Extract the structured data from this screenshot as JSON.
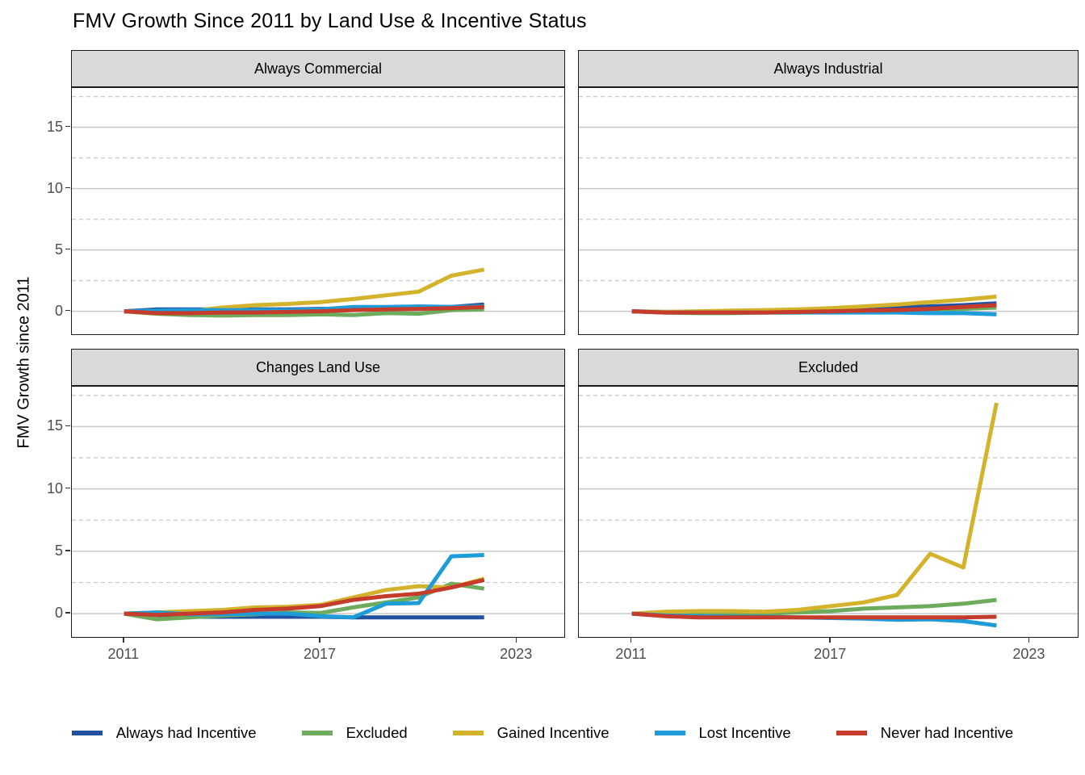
{
  "title": "FMV Growth Since 2011 by Land Use & Incentive Status",
  "ylabel": "FMV Growth since 2011",
  "legend": {
    "items": [
      {
        "label": "Always had Incentive",
        "color": "#22519F"
      },
      {
        "label": "Excluded",
        "color": "#6CAC5C"
      },
      {
        "label": "Gained Incentive",
        "color": "#D3B32B"
      },
      {
        "label": "Lost Incentive",
        "color": "#1E9CD8"
      },
      {
        "label": "Never had Incentive",
        "color": "#C53B2C"
      }
    ]
  },
  "chart_data": {
    "type": "line",
    "x": [
      2011,
      2012,
      2013,
      2014,
      2015,
      2016,
      2017,
      2018,
      2019,
      2020,
      2021,
      2022
    ],
    "xticks": [
      2011,
      2017,
      2023
    ],
    "yticks": [
      0,
      5,
      10,
      15
    ],
    "minor_yticks": [
      2.5,
      7.5,
      12.5,
      17.5
    ],
    "xlim": [
      2009.4,
      2024.5
    ],
    "ylim": [
      -2,
      18.2
    ],
    "grid": "horizontal-only",
    "legend_position": "bottom",
    "series_colors": {
      "Always had Incentive": "#22519F",
      "Excluded": "#6CAC5C",
      "Gained Incentive": "#D3B32B",
      "Lost Incentive": "#1E9CD8",
      "Never had Incentive": "#C53B2C"
    },
    "panels": [
      {
        "label": "Always Commercial",
        "series": [
          {
            "name": "Always had Incentive",
            "values": [
              0,
              0.15,
              0.15,
              0.15,
              0.15,
              0.15,
              0.2,
              0.2,
              0.25,
              0.3,
              0.35,
              0.55
            ]
          },
          {
            "name": "Excluded",
            "values": [
              0,
              -0.2,
              -0.3,
              -0.35,
              -0.3,
              -0.3,
              -0.25,
              -0.3,
              -0.15,
              -0.2,
              0.1,
              0.15
            ]
          },
          {
            "name": "Gained Incentive",
            "values": [
              0,
              -0.05,
              0,
              0.3,
              0.5,
              0.6,
              0.75,
              1.0,
              1.3,
              1.6,
              2.9,
              3.4
            ]
          },
          {
            "name": "Lost Incentive",
            "values": [
              0,
              0.05,
              0.1,
              0.1,
              0.1,
              0.1,
              0.15,
              0.35,
              0.35,
              0.4,
              0.35,
              0.4
            ]
          },
          {
            "name": "Never had Incentive",
            "values": [
              0,
              -0.15,
              -0.15,
              -0.1,
              -0.1,
              -0.05,
              0,
              0.1,
              0.15,
              0.2,
              0.25,
              0.35
            ]
          }
        ]
      },
      {
        "label": "Always Industrial",
        "series": [
          {
            "name": "Always had Incentive",
            "values": [
              0,
              -0.05,
              -0.05,
              -0.05,
              0,
              0,
              0.05,
              0.2,
              0.3,
              0.4,
              0.5,
              0.65
            ]
          },
          {
            "name": "Excluded",
            "values": [
              0,
              -0.1,
              -0.15,
              -0.15,
              -0.1,
              -0.1,
              -0.05,
              -0.05,
              0,
              0.1,
              0.2,
              0.3
            ]
          },
          {
            "name": "Gained Incentive",
            "values": [
              0,
              -0.05,
              0,
              0.05,
              0.1,
              0.15,
              0.25,
              0.4,
              0.55,
              0.75,
              0.95,
              1.2
            ]
          },
          {
            "name": "Lost Incentive",
            "values": [
              0,
              -0.1,
              -0.1,
              -0.1,
              -0.1,
              -0.1,
              -0.1,
              -0.1,
              -0.1,
              -0.15,
              -0.15,
              -0.25
            ]
          },
          {
            "name": "Never had Incentive",
            "values": [
              0,
              -0.1,
              -0.1,
              -0.1,
              -0.1,
              -0.05,
              0,
              0.05,
              0.1,
              0.2,
              0.35,
              0.5
            ]
          }
        ]
      },
      {
        "label": "Changes Land Use",
        "series": [
          {
            "name": "Always had Incentive",
            "values": [
              0,
              -0.1,
              -0.25,
              -0.25,
              -0.25,
              -0.25,
              -0.25,
              -0.3,
              -0.3,
              -0.3,
              -0.3,
              -0.3
            ]
          },
          {
            "name": "Excluded",
            "values": [
              0,
              -0.45,
              -0.3,
              -0.15,
              -0.05,
              0.1,
              0.05,
              0.5,
              0.9,
              1.3,
              2.4,
              2.0
            ]
          },
          {
            "name": "Gained Incentive",
            "values": [
              0,
              0.1,
              0.2,
              0.3,
              0.5,
              0.55,
              0.7,
              1.3,
              1.9,
              2.2,
              2.1,
              2.8
            ]
          },
          {
            "name": "Lost Incentive",
            "values": [
              0,
              0.1,
              -0.05,
              -0.05,
              0,
              0,
              -0.2,
              -0.3,
              0.8,
              0.85,
              4.6,
              4.7
            ]
          },
          {
            "name": "Never had Incentive",
            "values": [
              0,
              -0.1,
              0,
              0.1,
              0.3,
              0.4,
              0.6,
              1.1,
              1.4,
              1.6,
              2.1,
              2.7
            ]
          }
        ]
      },
      {
        "label": "Excluded",
        "series": [
          {
            "name": "Excluded",
            "values": [
              0,
              -0.1,
              -0.05,
              0,
              0,
              0.1,
              0.2,
              0.4,
              0.5,
              0.6,
              0.8,
              1.1
            ]
          },
          {
            "name": "Gained Incentive",
            "values": [
              0,
              0.15,
              0.2,
              0.2,
              0.15,
              0.3,
              0.6,
              0.9,
              1.5,
              4.8,
              3.7,
              16.9
            ]
          },
          {
            "name": "Lost Incentive",
            "values": [
              0,
              -0.15,
              -0.2,
              -0.25,
              -0.25,
              -0.3,
              -0.35,
              -0.4,
              -0.5,
              -0.45,
              -0.6,
              -0.95
            ]
          },
          {
            "name": "Never had Incentive",
            "values": [
              0,
              -0.2,
              -0.3,
              -0.3,
              -0.3,
              -0.3,
              -0.3,
              -0.3,
              -0.3,
              -0.3,
              -0.3,
              -0.25
            ]
          }
        ]
      }
    ]
  }
}
